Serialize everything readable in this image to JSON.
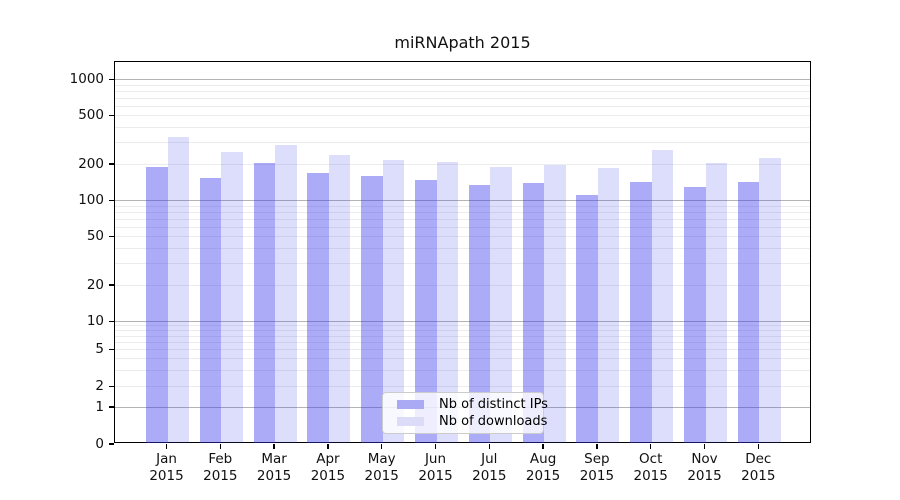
{
  "title": "miRNApath 2015",
  "colors": {
    "bar_ips": "rgba(55,55,235,0.42)",
    "bar_downloads": "rgba(55,55,235,0.17)",
    "legend_swatch_ips": "#a9a9f4",
    "legend_swatch_downloads": "#dcdcf8",
    "grid_major": "#b4b4b4",
    "grid_minor": "#ececec",
    "axis": "#000000"
  },
  "axes": {
    "y_tick_labels": [
      "1000",
      "500",
      "200",
      "100",
      "50",
      "20",
      "10",
      "5",
      "2",
      "1",
      "0"
    ],
    "y_tick_values": [
      1000,
      500,
      200,
      100,
      50,
      20,
      10,
      5,
      2,
      1,
      0
    ],
    "x_tick_line1": [
      "Jan",
      "Feb",
      "Mar",
      "Apr",
      "May",
      "Jun",
      "Jul",
      "Aug",
      "Sep",
      "Oct",
      "Nov",
      "Dec"
    ],
    "x_tick_line2": "2015"
  },
  "legend": {
    "items": [
      {
        "label": "Nb of distinct IPs"
      },
      {
        "label": "Nb of downloads"
      }
    ]
  },
  "chart_data": {
    "type": "bar",
    "title": "miRNApath 2015",
    "categories": [
      {
        "month": "Jan",
        "year": "2015"
      },
      {
        "month": "Feb",
        "year": "2015"
      },
      {
        "month": "Mar",
        "year": "2015"
      },
      {
        "month": "Apr",
        "year": "2015"
      },
      {
        "month": "May",
        "year": "2015"
      },
      {
        "month": "Jun",
        "year": "2015"
      },
      {
        "month": "Jul",
        "year": "2015"
      },
      {
        "month": "Aug",
        "year": "2015"
      },
      {
        "month": "Sep",
        "year": "2015"
      },
      {
        "month": "Oct",
        "year": "2015"
      },
      {
        "month": "Nov",
        "year": "2015"
      },
      {
        "month": "Dec",
        "year": "2015"
      }
    ],
    "series": [
      {
        "name": "Nb of distinct IPs",
        "values": [
          190,
          155,
          205,
          170,
          160,
          150,
          135,
          140,
          113,
          144,
          130,
          144
        ]
      },
      {
        "name": "Nb of downloads",
        "values": [
          335,
          255,
          290,
          240,
          220,
          210,
          190,
          200,
          188,
          265,
          205,
          227
        ]
      }
    ],
    "xlabel": "",
    "ylabel": "",
    "y_scale": "log-like with ticks 0,1,2,5,10,20,50,100,200,500,1000",
    "ylim": [
      0,
      1400
    ],
    "grid": "horizontal major and minor gridlines",
    "legend_position": "inside lower center"
  }
}
